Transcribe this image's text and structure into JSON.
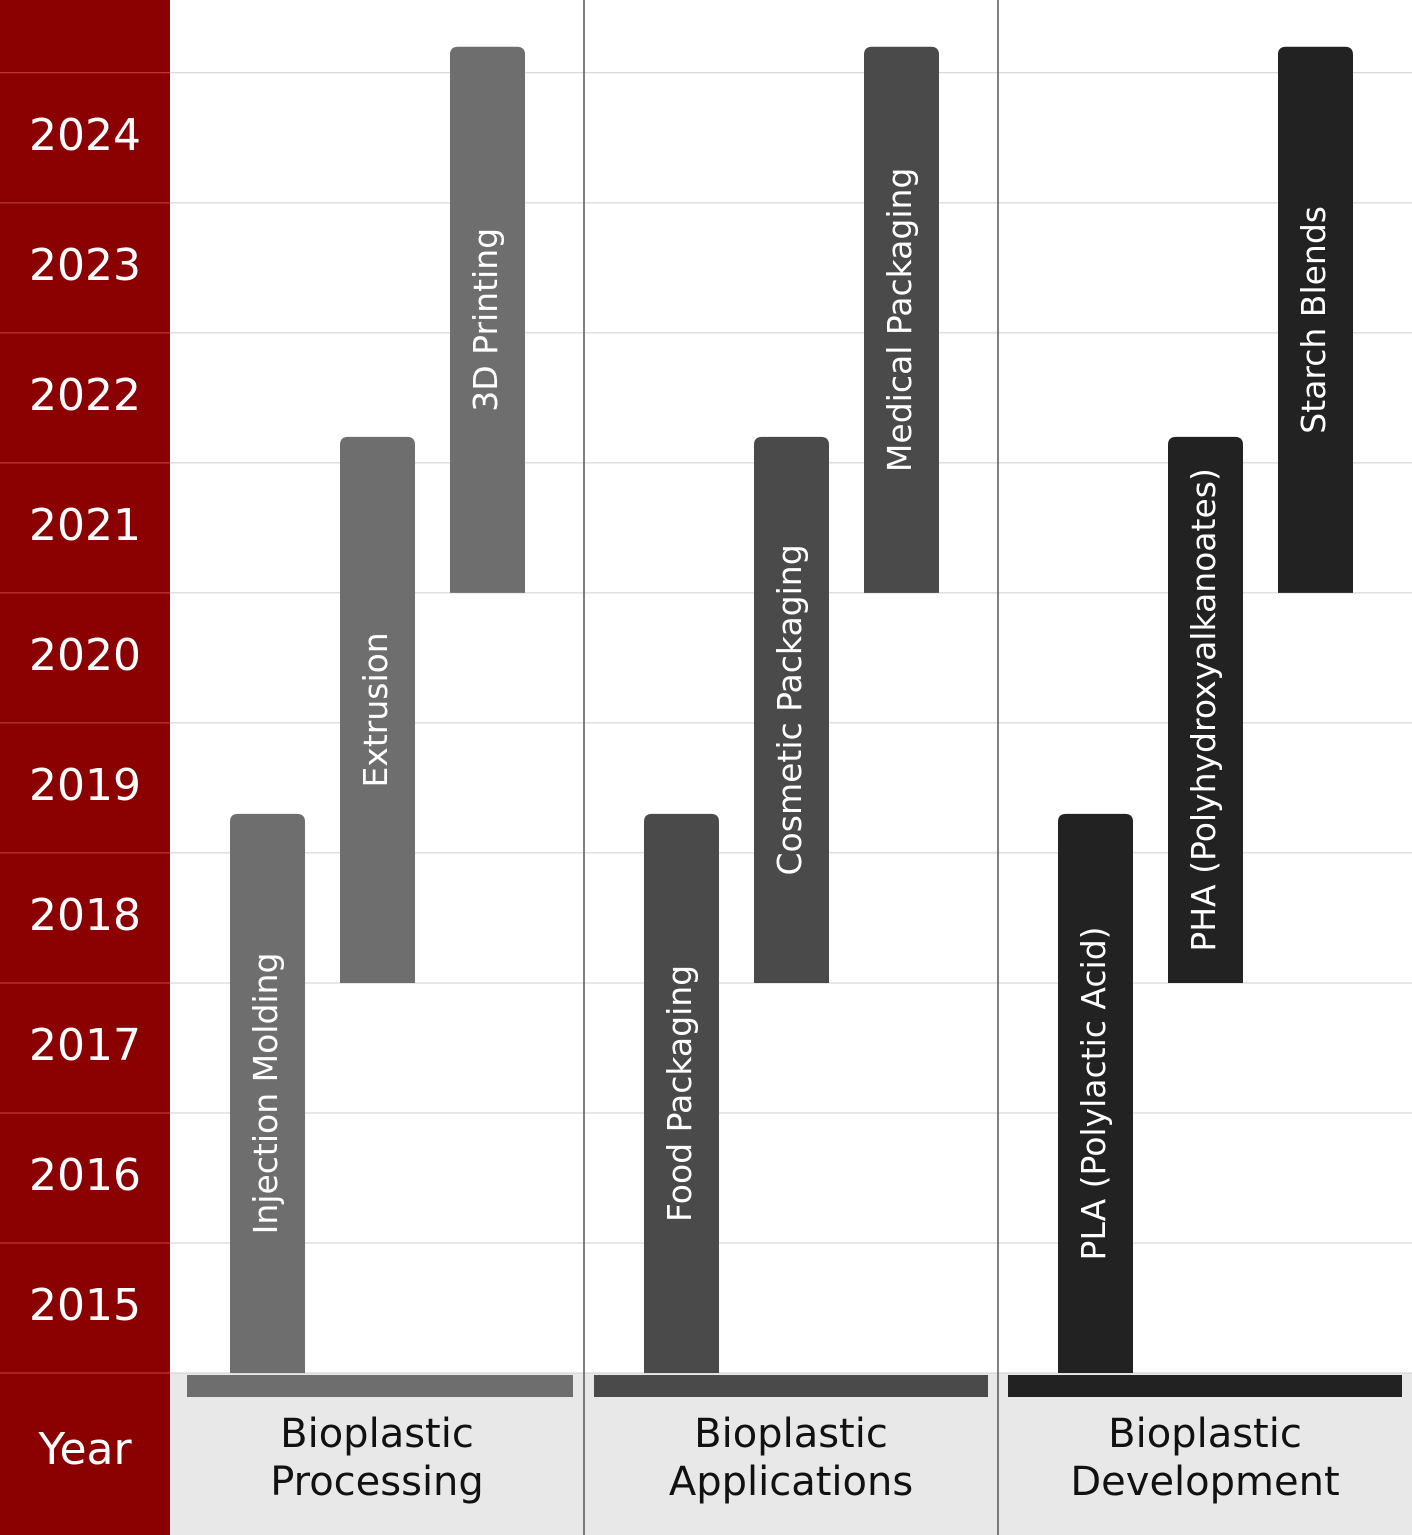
{
  "chart_data": {
    "type": "timeline",
    "axis_label": "Year",
    "ylim": [
      2015,
      2025.56
    ],
    "yticks": [
      2015,
      2016,
      2017,
      2018,
      2019,
      2020,
      2021,
      2022,
      2023,
      2024
    ],
    "grid": true,
    "groups": [
      {
        "name": "Bioplastic Processing",
        "color": "#6e6e6e",
        "tasks": [
          {
            "name": "Injection Molding",
            "start": 2015,
            "end": 2019.3
          },
          {
            "name": "Extrusion",
            "start": 2018,
            "end": 2022.2
          },
          {
            "name": "3D Printing",
            "start": 2021,
            "end": 2025.2
          }
        ]
      },
      {
        "name": "Bioplastic Applications",
        "color": "#4a4a4a",
        "tasks": [
          {
            "name": "Food Packaging",
            "start": 2015,
            "end": 2019.3
          },
          {
            "name": "Cosmetic Packaging",
            "start": 2018,
            "end": 2022.2
          },
          {
            "name": "Medical Packaging",
            "start": 2021,
            "end": 2025.2
          }
        ]
      },
      {
        "name": "Bioplastic Development",
        "color": "#222222",
        "tasks": [
          {
            "name": "PLA (Polylactic Acid)",
            "start": 2015,
            "end": 2019.3
          },
          {
            "name": "PHA (Polyhydroxyalkanoates)",
            "start": 2018,
            "end": 2022.2
          },
          {
            "name": "Starch Blends",
            "start": 2021,
            "end": 2025.2
          }
        ]
      }
    ]
  }
}
